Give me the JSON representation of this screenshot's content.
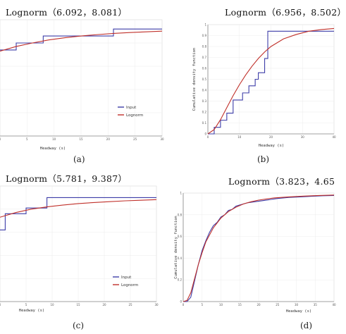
{
  "chart_data": [
    {
      "id": "a",
      "type": "line",
      "title": "Lognorm（6.092，8.081）",
      "sublabel": "(a)",
      "xlabel": "Headway (s)",
      "ylabel": "",
      "xlim": [
        0,
        30
      ],
      "ylim": [
        0,
        1
      ],
      "xticks": [
        "0",
        "5",
        "10",
        "15",
        "20",
        "25",
        "30"
      ],
      "yticks": [],
      "legend": [
        "Input",
        "Lognorm"
      ],
      "legend_position": "lower-right",
      "series": [
        {
          "name": "Input",
          "color": "#3d3da8",
          "x": [
            0,
            3,
            3,
            8,
            8,
            21,
            21,
            30
          ],
          "y": [
            0.74,
            0.74,
            0.8,
            0.8,
            0.86,
            0.86,
            0.92,
            0.92
          ]
        },
        {
          "name": "Lognorm",
          "color": "#c0302a",
          "x": [
            0,
            3,
            6,
            9,
            12,
            15,
            18,
            21,
            24,
            27,
            30
          ],
          "y": [
            0.73,
            0.77,
            0.8,
            0.826,
            0.845,
            0.86,
            0.872,
            0.882,
            0.89,
            0.896,
            0.902
          ]
        }
      ]
    },
    {
      "id": "b",
      "type": "line",
      "title": "Lognorm（6.956，8.502）",
      "sublabel": "(b)",
      "xlabel": "Headway (s)",
      "ylabel": "Cumulative density function",
      "xlim": [
        0,
        40
      ],
      "ylim": [
        0,
        1
      ],
      "xticks": [
        "0",
        "10",
        "20",
        "30",
        "40"
      ],
      "yticks": [
        "0",
        "0.1",
        "0.2",
        "0.3",
        "0.4",
        "0.5",
        "0.6",
        "0.7",
        "0.8",
        "0.9",
        "1"
      ],
      "legend": [],
      "legend_position": "",
      "series": [
        {
          "name": "Input",
          "color": "#3d3da8",
          "x": [
            0,
            2,
            2,
            4,
            4,
            6,
            6,
            8,
            8,
            11,
            11,
            13,
            13,
            15,
            15,
            16,
            16,
            18,
            18,
            19,
            19,
            40
          ],
          "y": [
            0,
            0,
            0.06,
            0.06,
            0.125,
            0.125,
            0.19,
            0.19,
            0.31,
            0.31,
            0.375,
            0.375,
            0.44,
            0.44,
            0.5,
            0.5,
            0.56,
            0.56,
            0.69,
            0.69,
            0.94,
            0.94
          ]
        },
        {
          "name": "Lognorm",
          "color": "#c0302a",
          "x": [
            0,
            2,
            4,
            6,
            8,
            10,
            12,
            14,
            16,
            18,
            20,
            24,
            28,
            32,
            36,
            40
          ],
          "y": [
            0,
            0.04,
            0.13,
            0.24,
            0.35,
            0.45,
            0.54,
            0.62,
            0.69,
            0.75,
            0.8,
            0.87,
            0.91,
            0.94,
            0.955,
            0.965
          ]
        }
      ]
    },
    {
      "id": "c",
      "type": "line",
      "title": "Lognorm（5.781，9.387）",
      "sublabel": "(c)",
      "xlabel": "Headway (s)",
      "ylabel": "",
      "xlim": [
        0,
        30
      ],
      "ylim": [
        0,
        1
      ],
      "xticks": [
        "0",
        "5",
        "10",
        "15",
        "20",
        "25",
        "30"
      ],
      "yticks": [],
      "legend": [
        "Input",
        "Lognorm"
      ],
      "legend_position": "lower-right",
      "series": [
        {
          "name": "Input",
          "color": "#3d3da8",
          "x": [
            0,
            1,
            1,
            5,
            5,
            9,
            9,
            30
          ],
          "y": [
            0.62,
            0.62,
            0.76,
            0.76,
            0.81,
            0.81,
            0.9,
            0.9
          ]
        },
        {
          "name": "Lognorm",
          "color": "#c0302a",
          "x": [
            0,
            3,
            6,
            9,
            12,
            15,
            18,
            21,
            24,
            27,
            30
          ],
          "y": [
            0.73,
            0.77,
            0.8,
            0.82,
            0.835,
            0.848,
            0.857,
            0.865,
            0.872,
            0.877,
            0.882
          ]
        }
      ]
    },
    {
      "id": "d",
      "type": "line",
      "title": "Lognorm（3.823，4.65",
      "sublabel": "(d)",
      "xlabel": "Headway (s)",
      "ylabel": "Cumulative density function",
      "xlim": [
        0,
        40
      ],
      "ylim": [
        0,
        1
      ],
      "xticks": [
        "0",
        "5",
        "10",
        "15",
        "20",
        "25",
        "30",
        "35",
        "40"
      ],
      "yticks": [
        "0",
        "0.2",
        "0.4",
        "0.6",
        "0.8",
        "1"
      ],
      "legend": [],
      "legend_position": "",
      "series": [
        {
          "name": "Input",
          "color": "#3d3da8",
          "x": [
            0,
            1,
            2,
            3,
            4,
            5,
            6,
            7,
            8,
            9,
            10,
            11,
            12,
            13,
            14,
            15,
            17,
            19,
            21,
            23,
            25,
            28,
            31,
            34,
            37,
            40
          ],
          "y": [
            0,
            0,
            0.04,
            0.19,
            0.34,
            0.47,
            0.56,
            0.64,
            0.7,
            0.73,
            0.78,
            0.8,
            0.84,
            0.85,
            0.88,
            0.89,
            0.91,
            0.92,
            0.93,
            0.94,
            0.95,
            0.96,
            0.965,
            0.97,
            0.975,
            0.978
          ]
        },
        {
          "name": "Lognorm",
          "color": "#c0302a",
          "x": [
            0,
            1,
            2,
            3,
            4,
            5,
            6,
            8,
            10,
            12,
            14,
            16,
            18,
            20,
            24,
            28,
            32,
            36,
            40
          ],
          "y": [
            0,
            0.01,
            0.08,
            0.21,
            0.34,
            0.45,
            0.55,
            0.68,
            0.77,
            0.83,
            0.87,
            0.9,
            0.92,
            0.935,
            0.955,
            0.965,
            0.972,
            0.978,
            0.982
          ]
        }
      ]
    }
  ]
}
